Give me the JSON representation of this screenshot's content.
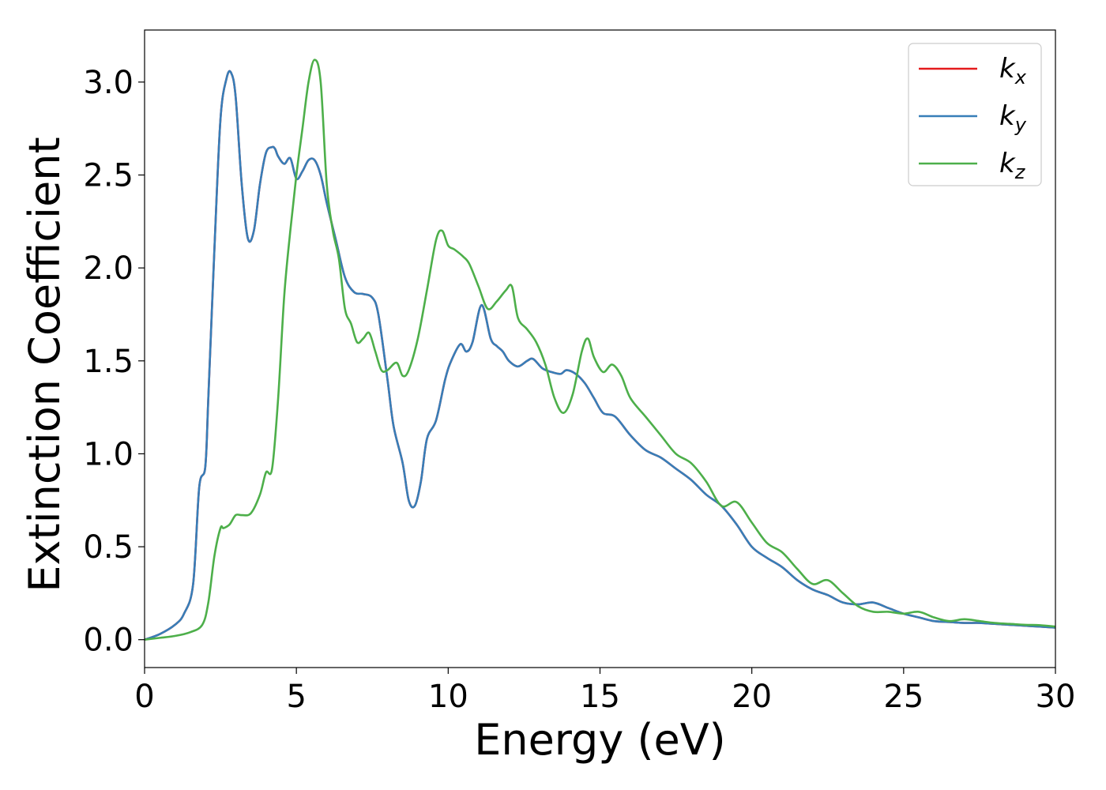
{
  "chart_data": {
    "type": "line",
    "xlabel": "Energy (eV)",
    "ylabel": "Extinction Coefficient",
    "xlim": [
      0,
      30
    ],
    "ylim": [
      -0.15,
      3.28
    ],
    "xticks": [
      0,
      5,
      10,
      15,
      20,
      25,
      30
    ],
    "xtick_labels": [
      "0",
      "5",
      "10",
      "15",
      "20",
      "25",
      "30"
    ],
    "yticks": [
      0.0,
      0.5,
      1.0,
      1.5,
      2.0,
      2.5,
      3.0
    ],
    "ytick_labels": [
      "0.0",
      "0.5",
      "1.0",
      "1.5",
      "2.0",
      "2.5",
      "3.0"
    ],
    "grid": false,
    "legend_position": "top-right",
    "series": [
      {
        "name": "k",
        "subscript": "x",
        "color": "#e41a1c",
        "x": [
          0,
          0.5,
          1,
          1.3,
          1.6,
          1.8,
          2.0,
          2.1,
          2.3,
          2.5,
          2.7,
          2.85,
          3.0,
          3.2,
          3.4,
          3.6,
          3.8,
          4.0,
          4.2,
          4.3,
          4.4,
          4.6,
          4.8,
          5.0,
          5.2,
          5.4,
          5.6,
          5.8,
          6.0,
          6.3,
          6.6,
          6.9,
          7.2,
          7.5,
          7.7,
          8.0,
          8.2,
          8.5,
          8.7,
          8.9,
          9.1,
          9.3,
          9.6,
          9.9,
          10.1,
          10.4,
          10.6,
          10.8,
          11.1,
          11.4,
          11.6,
          11.8,
          12.0,
          12.3,
          12.6,
          12.8,
          13.1,
          13.4,
          13.7,
          13.9,
          14.2,
          14.5,
          14.8,
          15.1,
          15.5,
          16.0,
          16.5,
          17.0,
          17.5,
          18.0,
          18.5,
          19.0,
          19.5,
          20.0,
          20.5,
          21.0,
          21.5,
          22.0,
          22.5,
          23.0,
          23.5,
          24.0,
          24.5,
          25.0,
          25.5,
          26.0,
          26.5,
          27.0,
          27.5,
          28.0,
          28.5,
          29.0,
          29.5,
          30.0
        ],
        "y": [
          0.0,
          0.03,
          0.08,
          0.14,
          0.3,
          0.82,
          0.93,
          1.3,
          2.1,
          2.8,
          3.02,
          3.05,
          2.92,
          2.45,
          2.16,
          2.2,
          2.45,
          2.62,
          2.65,
          2.64,
          2.6,
          2.56,
          2.59,
          2.48,
          2.52,
          2.58,
          2.58,
          2.5,
          2.35,
          2.15,
          1.95,
          1.87,
          1.86,
          1.84,
          1.75,
          1.4,
          1.15,
          0.95,
          0.75,
          0.72,
          0.85,
          1.08,
          1.18,
          1.4,
          1.5,
          1.59,
          1.55,
          1.6,
          1.8,
          1.62,
          1.58,
          1.55,
          1.5,
          1.47,
          1.5,
          1.51,
          1.46,
          1.44,
          1.43,
          1.45,
          1.43,
          1.38,
          1.3,
          1.22,
          1.2,
          1.1,
          1.02,
          0.98,
          0.92,
          0.86,
          0.78,
          0.72,
          0.62,
          0.5,
          0.44,
          0.39,
          0.32,
          0.27,
          0.24,
          0.2,
          0.19,
          0.2,
          0.17,
          0.14,
          0.12,
          0.1,
          0.095,
          0.09,
          0.09,
          0.085,
          0.08,
          0.075,
          0.07,
          0.065
        ]
      },
      {
        "name": "k",
        "subscript": "y",
        "color": "#377eb8",
        "x": [
          0,
          0.5,
          1,
          1.3,
          1.6,
          1.8,
          2.0,
          2.1,
          2.3,
          2.5,
          2.7,
          2.85,
          3.0,
          3.2,
          3.4,
          3.6,
          3.8,
          4.0,
          4.2,
          4.3,
          4.4,
          4.6,
          4.8,
          5.0,
          5.2,
          5.4,
          5.6,
          5.8,
          6.0,
          6.3,
          6.6,
          6.9,
          7.2,
          7.5,
          7.7,
          8.0,
          8.2,
          8.5,
          8.7,
          8.9,
          9.1,
          9.3,
          9.6,
          9.9,
          10.1,
          10.4,
          10.6,
          10.8,
          11.1,
          11.4,
          11.6,
          11.8,
          12.0,
          12.3,
          12.6,
          12.8,
          13.1,
          13.4,
          13.7,
          13.9,
          14.2,
          14.5,
          14.8,
          15.1,
          15.5,
          16.0,
          16.5,
          17.0,
          17.5,
          18.0,
          18.5,
          19.0,
          19.5,
          20.0,
          20.5,
          21.0,
          21.5,
          22.0,
          22.5,
          23.0,
          23.5,
          24.0,
          24.5,
          25.0,
          25.5,
          26.0,
          26.5,
          27.0,
          27.5,
          28.0,
          28.5,
          29.0,
          29.5,
          30.0
        ],
        "y": [
          0.0,
          0.03,
          0.08,
          0.14,
          0.3,
          0.82,
          0.93,
          1.3,
          2.1,
          2.8,
          3.02,
          3.05,
          2.92,
          2.45,
          2.16,
          2.2,
          2.45,
          2.62,
          2.65,
          2.64,
          2.6,
          2.56,
          2.59,
          2.48,
          2.52,
          2.58,
          2.58,
          2.5,
          2.35,
          2.15,
          1.95,
          1.87,
          1.86,
          1.84,
          1.75,
          1.4,
          1.15,
          0.95,
          0.75,
          0.72,
          0.85,
          1.08,
          1.18,
          1.4,
          1.5,
          1.59,
          1.55,
          1.6,
          1.8,
          1.62,
          1.58,
          1.55,
          1.5,
          1.47,
          1.5,
          1.51,
          1.46,
          1.44,
          1.43,
          1.45,
          1.43,
          1.38,
          1.3,
          1.22,
          1.2,
          1.1,
          1.02,
          0.98,
          0.92,
          0.86,
          0.78,
          0.72,
          0.62,
          0.5,
          0.44,
          0.39,
          0.32,
          0.27,
          0.24,
          0.2,
          0.19,
          0.2,
          0.17,
          0.14,
          0.12,
          0.1,
          0.095,
          0.09,
          0.09,
          0.085,
          0.08,
          0.075,
          0.07,
          0.065
        ]
      },
      {
        "name": "k",
        "subscript": "z",
        "color": "#4daf4a",
        "x": [
          0,
          0.5,
          1,
          1.5,
          1.9,
          2.1,
          2.3,
          2.5,
          2.6,
          2.8,
          3.0,
          3.2,
          3.5,
          3.8,
          4.0,
          4.2,
          4.4,
          4.6,
          4.8,
          5.0,
          5.2,
          5.4,
          5.6,
          5.8,
          6.0,
          6.2,
          6.4,
          6.6,
          6.8,
          7.0,
          7.2,
          7.4,
          7.6,
          7.8,
          8.0,
          8.3,
          8.5,
          8.7,
          9.0,
          9.3,
          9.6,
          9.8,
          10.0,
          10.2,
          10.5,
          10.7,
          11.0,
          11.3,
          11.6,
          11.9,
          12.1,
          12.3,
          12.6,
          12.9,
          13.2,
          13.5,
          13.8,
          14.1,
          14.4,
          14.6,
          14.8,
          15.1,
          15.4,
          15.7,
          16.0,
          16.5,
          17.0,
          17.5,
          18.0,
          18.5,
          19.0,
          19.5,
          20.0,
          20.5,
          21.0,
          21.5,
          22.0,
          22.5,
          23.0,
          23.5,
          24.0,
          24.5,
          25.0,
          25.5,
          26.0,
          26.5,
          27.0,
          27.5,
          28.0,
          28.5,
          29.0,
          29.5,
          30.0
        ],
        "y": [
          0.0,
          0.01,
          0.02,
          0.04,
          0.08,
          0.2,
          0.45,
          0.6,
          0.6,
          0.62,
          0.67,
          0.67,
          0.68,
          0.78,
          0.9,
          0.92,
          1.3,
          1.85,
          2.2,
          2.5,
          2.75,
          3.0,
          3.12,
          3.0,
          2.45,
          2.2,
          2.05,
          1.78,
          1.7,
          1.6,
          1.62,
          1.65,
          1.55,
          1.45,
          1.45,
          1.49,
          1.42,
          1.45,
          1.62,
          1.88,
          2.15,
          2.2,
          2.12,
          2.1,
          2.06,
          2.02,
          1.9,
          1.78,
          1.82,
          1.88,
          1.9,
          1.73,
          1.67,
          1.6,
          1.48,
          1.3,
          1.22,
          1.32,
          1.55,
          1.62,
          1.52,
          1.44,
          1.48,
          1.42,
          1.3,
          1.2,
          1.1,
          1.0,
          0.95,
          0.85,
          0.72,
          0.74,
          0.63,
          0.52,
          0.47,
          0.38,
          0.3,
          0.32,
          0.25,
          0.18,
          0.15,
          0.15,
          0.14,
          0.15,
          0.12,
          0.1,
          0.11,
          0.1,
          0.09,
          0.085,
          0.08,
          0.078,
          0.07
        ]
      }
    ]
  }
}
